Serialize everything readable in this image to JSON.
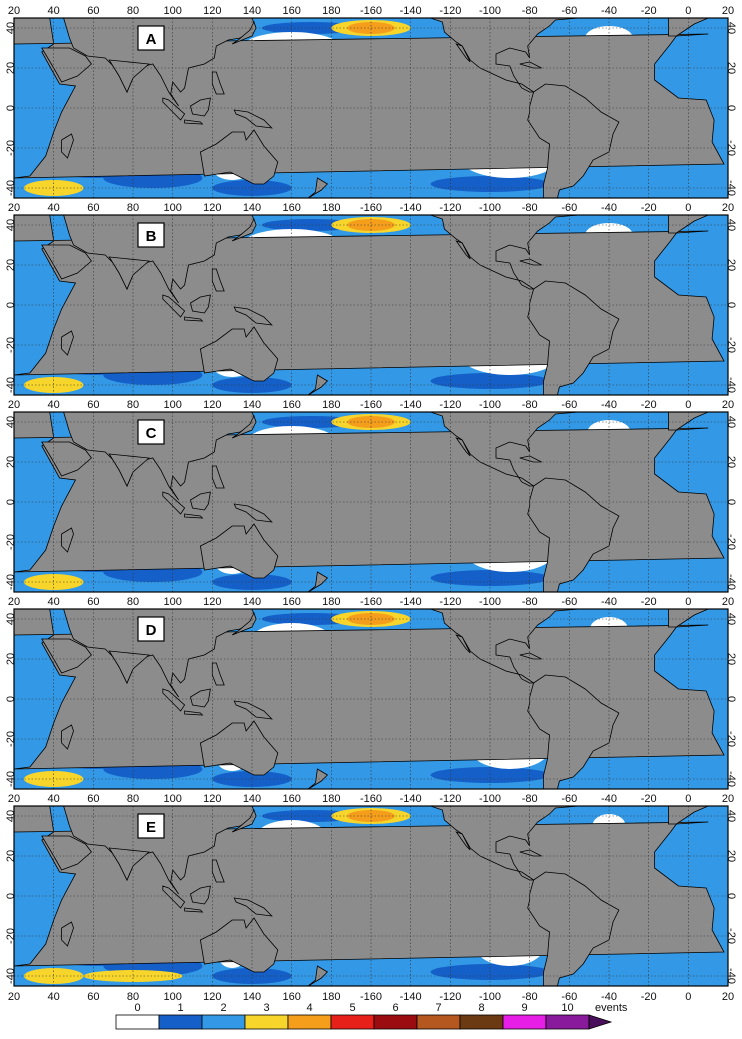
{
  "figure": {
    "x_ticks": [
      "20",
      "40",
      "60",
      "80",
      "100",
      "120",
      "140",
      "160",
      "180",
      "-160",
      "-140",
      "-120",
      "-100",
      "-80",
      "-60",
      "-40",
      "-20",
      "0",
      "20"
    ],
    "y_ticks": [
      "40",
      "20",
      "0",
      "-20",
      "-40"
    ],
    "panels": [
      {
        "label": "A",
        "warm_pool_level": 1
      },
      {
        "label": "B",
        "warm_pool_level": 1
      },
      {
        "label": "C",
        "warm_pool_level": 2
      },
      {
        "label": "D",
        "warm_pool_level": 3
      },
      {
        "label": "E",
        "warm_pool_level": 4
      }
    ],
    "colorbar": {
      "ticks": [
        "0",
        "1",
        "2",
        "3",
        "4",
        "5",
        "6",
        "7",
        "8",
        "9",
        "10"
      ],
      "unit": "events",
      "colors": [
        "#ffffff",
        "#1560c8",
        "#3399e6",
        "#f7d52a",
        "#f59e1c",
        "#e8201a",
        "#9b0c10",
        "#b5581f",
        "#6b3a12",
        "#e61ee6",
        "#8a1a9c"
      ]
    },
    "colors": {
      "land": "#8c8c8c",
      "coast": "#000000",
      "grid": "#333333"
    }
  }
}
